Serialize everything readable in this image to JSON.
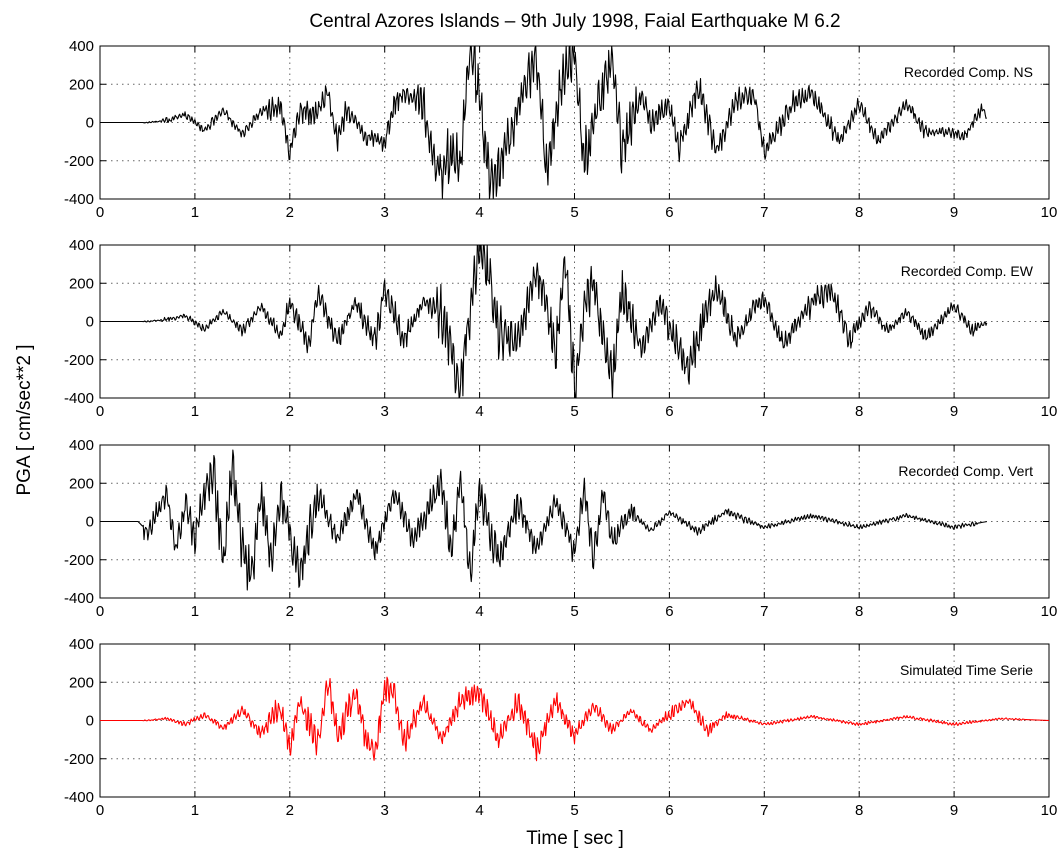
{
  "chart_data": {
    "type": "line",
    "title": "Central Azores Islands – 9th July 1998, Faial Earthquake M 6.2",
    "xlabel": "Time [ sec ]",
    "ylabel": "PGA [ cm/sec**2 ]",
    "xlim": [
      0,
      10
    ],
    "ylim": [
      -400,
      400
    ],
    "x_ticks": [
      0,
      1,
      2,
      3,
      4,
      5,
      6,
      7,
      8,
      9,
      10
    ],
    "y_ticks": [
      400,
      200,
      0,
      -200,
      -400
    ],
    "grid": true,
    "panels": [
      {
        "name": "Recorded Comp. NS",
        "color": "#000000",
        "t_end": 9.35,
        "points": [
          [
            0,
            0
          ],
          [
            0.5,
            0
          ],
          [
            0.7,
            10
          ],
          [
            0.9,
            40
          ],
          [
            1.1,
            -40
          ],
          [
            1.3,
            60
          ],
          [
            1.5,
            -60
          ],
          [
            1.7,
            60
          ],
          [
            1.9,
            80
          ],
          [
            2.0,
            -150
          ],
          [
            2.1,
            60
          ],
          [
            2.3,
            50
          ],
          [
            2.4,
            160
          ],
          [
            2.5,
            -100
          ],
          [
            2.6,
            80
          ],
          [
            2.8,
            -80
          ],
          [
            3.0,
            -100
          ],
          [
            3.1,
            100
          ],
          [
            3.2,
            150
          ],
          [
            3.4,
            100
          ],
          [
            3.5,
            -150
          ],
          [
            3.6,
            -280
          ],
          [
            3.7,
            -150
          ],
          [
            3.8,
            -200
          ],
          [
            3.9,
            400
          ],
          [
            4.0,
            150
          ],
          [
            4.1,
            -300
          ],
          [
            4.2,
            -250
          ],
          [
            4.3,
            -100
          ],
          [
            4.5,
            250
          ],
          [
            4.6,
            350
          ],
          [
            4.7,
            -250
          ],
          [
            4.9,
            300
          ],
          [
            5.0,
            350
          ],
          [
            5.1,
            -200
          ],
          [
            5.3,
            200
          ],
          [
            5.4,
            350
          ],
          [
            5.5,
            -150
          ],
          [
            5.7,
            150
          ],
          [
            5.8,
            0
          ],
          [
            6.0,
            100
          ],
          [
            6.1,
            -150
          ],
          [
            6.3,
            200
          ],
          [
            6.5,
            -150
          ],
          [
            6.7,
            120
          ],
          [
            6.9,
            130
          ],
          [
            7.0,
            -150
          ],
          [
            7.3,
            100
          ],
          [
            7.5,
            150
          ],
          [
            7.8,
            -100
          ],
          [
            8.0,
            100
          ],
          [
            8.2,
            -100
          ],
          [
            8.5,
            100
          ],
          [
            8.7,
            -50
          ],
          [
            9.0,
            -50
          ],
          [
            9.1,
            -80
          ],
          [
            9.3,
            80
          ],
          [
            9.35,
            20
          ]
        ]
      },
      {
        "name": "Recorded Comp. EW",
        "color": "#000000",
        "t_end": 9.35,
        "points": [
          [
            0,
            0
          ],
          [
            0.5,
            0
          ],
          [
            0.7,
            10
          ],
          [
            0.9,
            30
          ],
          [
            1.1,
            -40
          ],
          [
            1.3,
            50
          ],
          [
            1.5,
            -50
          ],
          [
            1.7,
            80
          ],
          [
            1.9,
            -80
          ],
          [
            2.0,
            100
          ],
          [
            2.2,
            -120
          ],
          [
            2.3,
            150
          ],
          [
            2.5,
            -100
          ],
          [
            2.7,
            100
          ],
          [
            2.9,
            -100
          ],
          [
            3.0,
            180
          ],
          [
            3.2,
            -100
          ],
          [
            3.4,
            100
          ],
          [
            3.6,
            50
          ],
          [
            3.7,
            -150
          ],
          [
            3.8,
            -350
          ],
          [
            3.9,
            50
          ],
          [
            4.0,
            370
          ],
          [
            4.1,
            250
          ],
          [
            4.2,
            -50
          ],
          [
            4.4,
            -100
          ],
          [
            4.6,
            250
          ],
          [
            4.7,
            100
          ],
          [
            4.8,
            -200
          ],
          [
            4.9,
            320
          ],
          [
            5.0,
            -350
          ],
          [
            5.1,
            100
          ],
          [
            5.2,
            200
          ],
          [
            5.3,
            -100
          ],
          [
            5.4,
            -300
          ],
          [
            5.5,
            150
          ],
          [
            5.7,
            -150
          ],
          [
            5.9,
            100
          ],
          [
            6.1,
            -150
          ],
          [
            6.2,
            -250
          ],
          [
            6.4,
            80
          ],
          [
            6.5,
            180
          ],
          [
            6.7,
            -100
          ],
          [
            6.9,
            80
          ],
          [
            7.0,
            120
          ],
          [
            7.2,
            -120
          ],
          [
            7.5,
            100
          ],
          [
            7.7,
            170
          ],
          [
            7.9,
            -100
          ],
          [
            8.1,
            80
          ],
          [
            8.3,
            -50
          ],
          [
            8.5,
            50
          ],
          [
            8.7,
            -80
          ],
          [
            9.0,
            80
          ],
          [
            9.2,
            -50
          ],
          [
            9.35,
            0
          ]
        ]
      },
      {
        "name": "Recorded Comp. Vert",
        "color": "#000000",
        "t_end": 9.35,
        "points": [
          [
            0,
            0
          ],
          [
            0.4,
            0
          ],
          [
            0.5,
            -50
          ],
          [
            0.7,
            150
          ],
          [
            0.8,
            -150
          ],
          [
            0.9,
            100
          ],
          [
            1.0,
            -100
          ],
          [
            1.1,
            150
          ],
          [
            1.2,
            250
          ],
          [
            1.3,
            -200
          ],
          [
            1.4,
            320
          ],
          [
            1.5,
            -150
          ],
          [
            1.6,
            -280
          ],
          [
            1.7,
            150
          ],
          [
            1.8,
            -200
          ],
          [
            1.9,
            120
          ],
          [
            2.1,
            -280
          ],
          [
            2.3,
            150
          ],
          [
            2.5,
            -100
          ],
          [
            2.7,
            150
          ],
          [
            2.9,
            -150
          ],
          [
            3.1,
            150
          ],
          [
            3.3,
            -100
          ],
          [
            3.5,
            100
          ],
          [
            3.6,
            200
          ],
          [
            3.7,
            -150
          ],
          [
            3.8,
            230
          ],
          [
            3.9,
            -280
          ],
          [
            4.0,
            150
          ],
          [
            4.2,
            -200
          ],
          [
            4.4,
            100
          ],
          [
            4.6,
            -150
          ],
          [
            4.8,
            100
          ],
          [
            5.0,
            -150
          ],
          [
            5.1,
            150
          ],
          [
            5.2,
            -200
          ],
          [
            5.3,
            150
          ],
          [
            5.4,
            -100
          ],
          [
            5.6,
            50
          ],
          [
            5.8,
            -50
          ],
          [
            6.0,
            50
          ],
          [
            6.3,
            -50
          ],
          [
            6.6,
            50
          ],
          [
            7.0,
            -30
          ],
          [
            7.5,
            30
          ],
          [
            8.0,
            -30
          ],
          [
            8.5,
            30
          ],
          [
            9.0,
            -30
          ],
          [
            9.35,
            0
          ]
        ]
      },
      {
        "name": "Simulated Time Serie",
        "color": "#ff0000",
        "t_end": 10.0,
        "points": [
          [
            0,
            0
          ],
          [
            0.5,
            0
          ],
          [
            0.7,
            10
          ],
          [
            0.9,
            -20
          ],
          [
            1.1,
            30
          ],
          [
            1.3,
            -40
          ],
          [
            1.5,
            50
          ],
          [
            1.7,
            -70
          ],
          [
            1.9,
            80
          ],
          [
            2.0,
            -150
          ],
          [
            2.1,
            100
          ],
          [
            2.3,
            -120
          ],
          [
            2.4,
            200
          ],
          [
            2.5,
            -80
          ],
          [
            2.7,
            150
          ],
          [
            2.8,
            -100
          ],
          [
            2.9,
            -180
          ],
          [
            3.0,
            170
          ],
          [
            3.1,
            150
          ],
          [
            3.2,
            -120
          ],
          [
            3.4,
            100
          ],
          [
            3.6,
            -100
          ],
          [
            3.8,
            100
          ],
          [
            4.0,
            150
          ],
          [
            4.2,
            -100
          ],
          [
            4.4,
            100
          ],
          [
            4.6,
            -150
          ],
          [
            4.8,
            100
          ],
          [
            5.0,
            -80
          ],
          [
            5.2,
            80
          ],
          [
            5.4,
            -50
          ],
          [
            5.6,
            50
          ],
          [
            5.8,
            -50
          ],
          [
            6.0,
            30
          ],
          [
            6.2,
            100
          ],
          [
            6.4,
            -50
          ],
          [
            6.6,
            30
          ],
          [
            7.0,
            -20
          ],
          [
            7.5,
            20
          ],
          [
            8.0,
            -20
          ],
          [
            8.5,
            20
          ],
          [
            9.0,
            -20
          ],
          [
            9.5,
            10
          ],
          [
            10.0,
            0
          ]
        ]
      }
    ]
  }
}
